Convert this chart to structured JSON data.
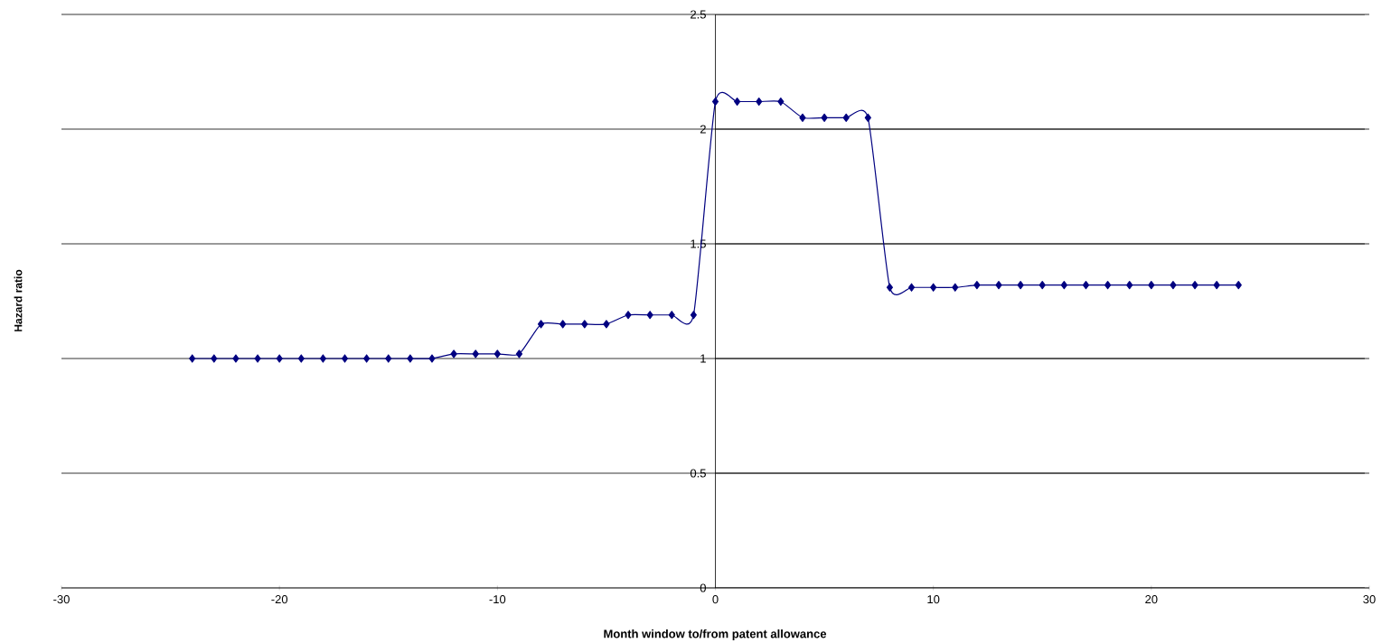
{
  "chart_data": {
    "type": "line",
    "xlabel": "Month window to/from patent allowance",
    "ylabel": "Hazard ratio",
    "x": [
      -24,
      -23,
      -22,
      -21,
      -20,
      -19,
      -18,
      -17,
      -16,
      -15,
      -14,
      -13,
      -12,
      -11,
      -10,
      -9,
      -8,
      -7,
      -6,
      -5,
      -4,
      -3,
      -2,
      -1,
      0,
      1,
      2,
      3,
      4,
      5,
      6,
      7,
      8,
      9,
      10,
      11,
      12,
      13,
      14,
      15,
      16,
      17,
      18,
      19,
      20,
      21,
      22,
      23,
      24
    ],
    "series": [
      {
        "color": "#000080",
        "values": [
          1.0,
          1.0,
          1.0,
          1.0,
          1.0,
          1.0,
          1.0,
          1.0,
          1.0,
          1.0,
          1.0,
          1.0,
          1.02,
          1.02,
          1.02,
          1.02,
          1.15,
          1.15,
          1.15,
          1.15,
          1.19,
          1.19,
          1.19,
          1.19,
          2.12,
          2.12,
          2.12,
          2.12,
          2.05,
          2.05,
          2.05,
          2.05,
          1.31,
          1.31,
          1.31,
          1.31,
          1.32,
          1.32,
          1.32,
          1.32,
          1.32,
          1.32,
          1.32,
          1.32,
          1.32,
          1.32,
          1.32,
          1.32,
          1.32
        ]
      }
    ],
    "xlim": [
      -30,
      30
    ],
    "xticks": [
      -30,
      -20,
      -10,
      0,
      10,
      20,
      30
    ],
    "ylim": [
      0,
      2.5
    ],
    "yticks": [
      0,
      0.5,
      1,
      1.5,
      2,
      2.5
    ],
    "grid": "y",
    "marker": "diamond",
    "line_style": "solid"
  }
}
